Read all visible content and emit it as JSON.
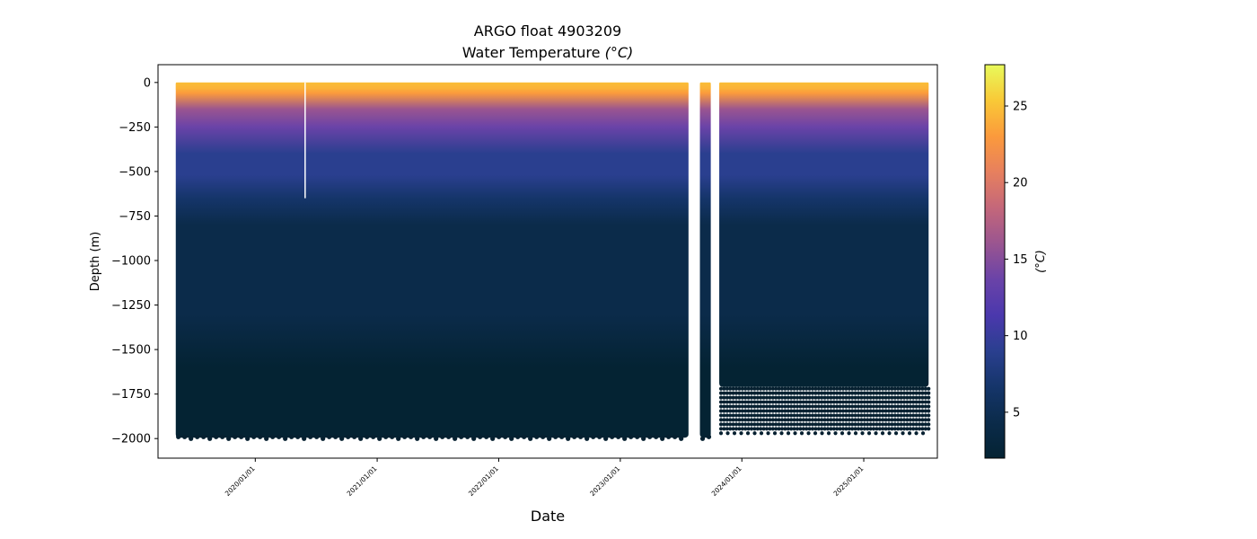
{
  "chart_data": {
    "type": "scatter",
    "title": "ARGO float 4903209",
    "subtitle": "Water Temperature",
    "subtitle_unit": "(°C)",
    "xlabel": "Date",
    "ylabel": "Depth (m)",
    "x_range": [
      "2019-03-15",
      "2025-08-10"
    ],
    "ylim": [
      -2110,
      100
    ],
    "x_ticks": [
      "2020/01/01",
      "2021/01/01",
      "2022/01/01",
      "2023/01/01",
      "2024/01/01",
      "2025/01/01"
    ],
    "y_ticks": [
      0,
      -250,
      -500,
      -750,
      -1000,
      -1250,
      -1500,
      -1750,
      -2000
    ],
    "colorbar": {
      "label": "(°C)",
      "range": [
        2,
        27.7
      ],
      "ticks": [
        5,
        10,
        15,
        20,
        25
      ],
      "colormap": "thermal"
    },
    "segments": [
      {
        "start": "2019-05-07",
        "end": "2023-07-25",
        "max_depth": -1985,
        "gap_start": "2020-05-29",
        "gap_end": "2020-05-30",
        "gap_bottom": -650
      },
      {
        "start": "2023-08-28",
        "end": "2023-09-30",
        "max_depth": -1985
      },
      {
        "start": "2023-10-25",
        "end": "2025-07-15",
        "max_depth": -1700
      }
    ],
    "deep_sample_rows": {
      "start": "2023-10-25",
      "end": "2025-07-15",
      "depths": [
        -1720,
        -1745,
        -1770,
        -1795,
        -1820,
        -1845,
        -1870,
        -1895,
        -1920,
        -1945,
        -1970
      ]
    },
    "grid": false,
    "legend": "none"
  }
}
